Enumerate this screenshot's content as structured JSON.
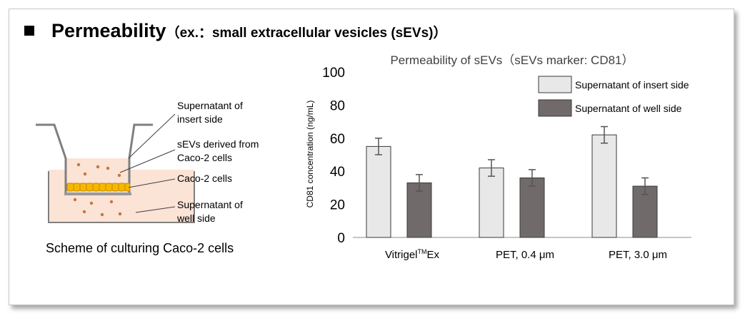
{
  "heading": {
    "title": "Permeability",
    "subtitle": "（ex.：small extracellular vesicles (sEVs)）"
  },
  "scheme": {
    "caption": "Scheme of culturing Caco-2 cells",
    "labels": [
      "Supernatant of\ninsert side",
      "sEVs derived from\nCaco-2 cells",
      "Caco-2 cells",
      "Supernatant of\nwell side"
    ]
  },
  "chart_data": {
    "type": "bar",
    "title": "Permeability of sEVs（sEVs marker: CD81）",
    "ylabel": "CD81 concentration (ng/mL)",
    "xlabel": "",
    "ylim": [
      0,
      100
    ],
    "yticks": [
      0,
      20,
      40,
      60,
      80,
      100
    ],
    "categories": [
      {
        "main": "Vitrigel",
        "sup": "TM",
        "tail": "Ex"
      },
      {
        "main": "PET, 0.4 μm",
        "sup": "",
        "tail": ""
      },
      {
        "main": "PET, 3.0 μm",
        "sup": "",
        "tail": ""
      }
    ],
    "series": [
      {
        "name": "Supernatant of insert side",
        "color": "#e8e8e8",
        "values": [
          55,
          42,
          62
        ],
        "errors": [
          5,
          5,
          5
        ]
      },
      {
        "name": "Supernatant of well side",
        "color": "#716a6a",
        "values": [
          33,
          36,
          31
        ],
        "errors": [
          5,
          5,
          5
        ]
      }
    ],
    "grid": false,
    "legend": "top-right"
  }
}
